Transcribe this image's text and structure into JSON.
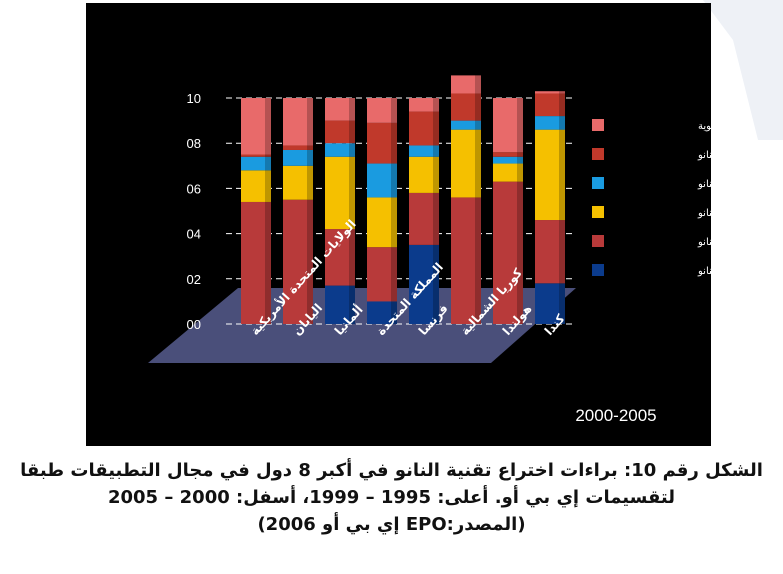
{
  "chart_data": {
    "type": "bar",
    "stacked": true,
    "categories": [
      "الولايات المتحدة الأمريكية",
      "اليابان",
      "ألمانيا",
      "المملكة المتحدة",
      "فرنسا",
      "كوريا الشمالية",
      "هولندا",
      "كندا"
    ],
    "series": [
      {
        "name": "مغناطيس النانو",
        "color": "#0b3b8c",
        "values": [
          0.0,
          0.0,
          1.7,
          1.0,
          3.5,
          0.0,
          0.0,
          1.8
        ]
      },
      {
        "name": "بصريات النانو",
        "color": "#b83a3a",
        "values": [
          5.4,
          5.5,
          2.5,
          2.4,
          2.3,
          5.6,
          6.3,
          2.8
        ]
      },
      {
        "name": "أجهزة النانو",
        "color": "#f5c000",
        "values": [
          1.4,
          1.5,
          3.2,
          2.2,
          1.6,
          3.0,
          0.8,
          4.0
        ]
      },
      {
        "name": "مواد النانو",
        "color": "#1a9be0",
        "values": [
          0.6,
          0.7,
          0.6,
          1.5,
          0.5,
          0.4,
          0.3,
          0.6
        ]
      },
      {
        "name": "كهرباء النانو",
        "color": "#c0392b",
        "values": [
          0.1,
          0.2,
          1.0,
          1.8,
          1.5,
          1.2,
          0.2,
          1.0
        ]
      },
      {
        "name": "تقنية النانو الحيوية",
        "color": "#e86a6a",
        "values": [
          2.5,
          2.1,
          1.0,
          1.1,
          0.6,
          0.8,
          2.4,
          0.1
        ]
      }
    ],
    "ylim": [
      0,
      10
    ],
    "yticks": [
      "00",
      "02",
      "04",
      "06",
      "08",
      "10"
    ],
    "legend_position": "right",
    "period_label": "2000-2005"
  },
  "caption": {
    "line1": "الشكل رقم 10: براءات اختراع تقنية النانو في أكبر 8 دول في مجال التطبيقات طبقا",
    "line2": "لتقسيمات إي بي أو. أعلى: 1995 – 1999، أسفل: 2000 – 2005",
    "line3": "(المصدر:EPO إي بي أو 2006)"
  },
  "colors": {
    "panel_background": "#000000",
    "floor": "#4a4f7a",
    "gridline": "#ffffff"
  }
}
